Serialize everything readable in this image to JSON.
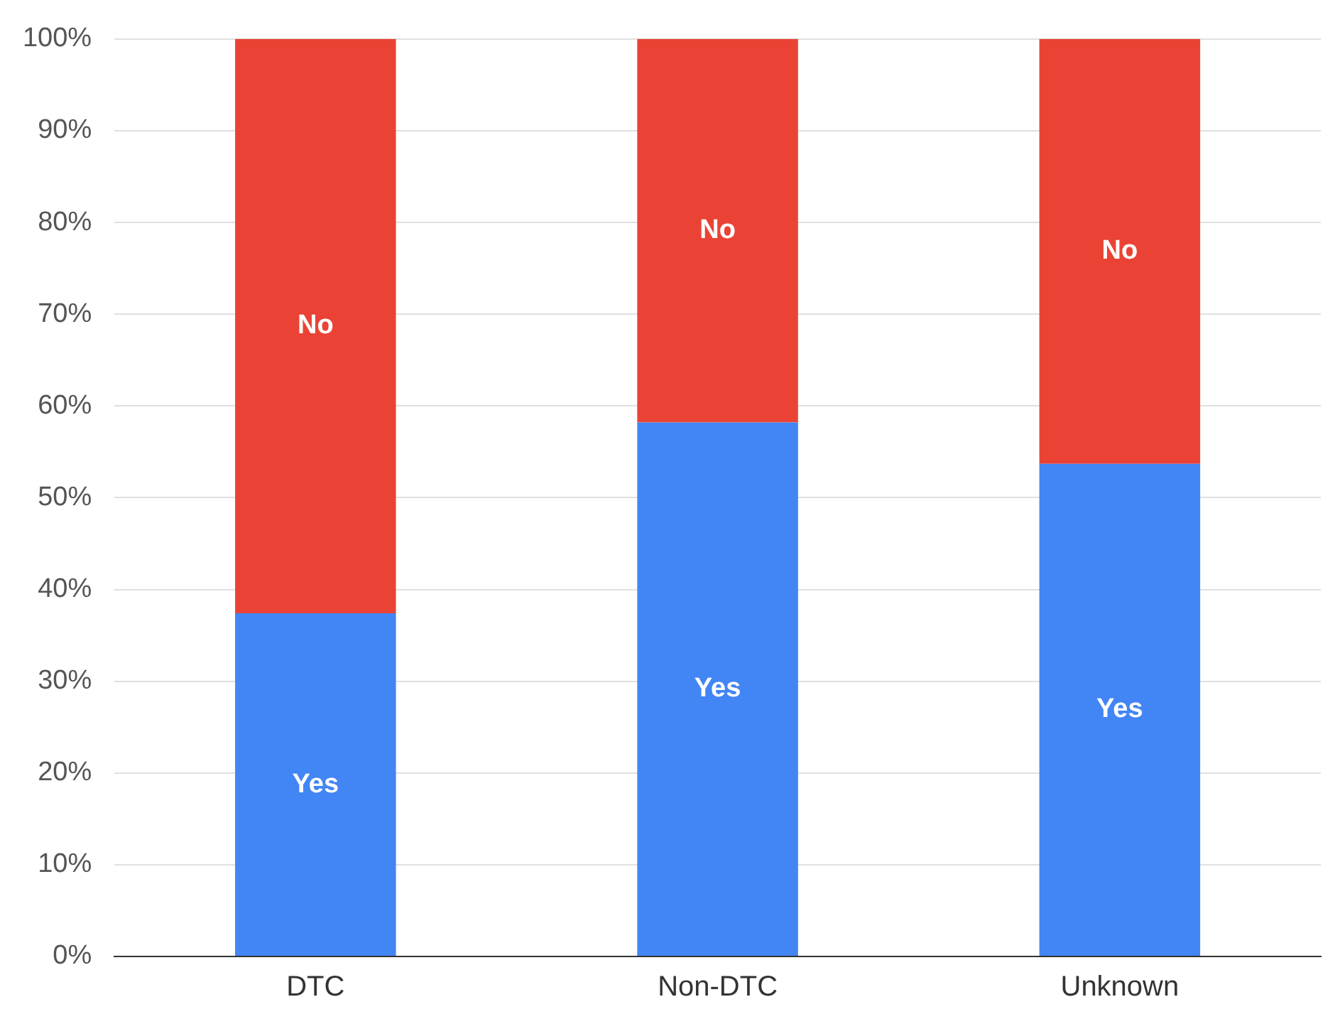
{
  "chart_data": {
    "type": "bar",
    "stacked": true,
    "categories": [
      "DTC",
      "Non-DTC",
      "Unknown"
    ],
    "series": [
      {
        "name": "Yes",
        "color": "#4285f4",
        "values": [
          37.4,
          58.2,
          53.7
        ]
      },
      {
        "name": "No",
        "color": "#ea4335",
        "values": [
          62.6,
          41.8,
          46.3
        ]
      }
    ],
    "ylim": [
      0,
      100
    ],
    "yticks": [
      {
        "value": 0,
        "label": "0%"
      },
      {
        "value": 10,
        "label": "10%"
      },
      {
        "value": 20,
        "label": "20%"
      },
      {
        "value": 30,
        "label": "30%"
      },
      {
        "value": 40,
        "label": "40%"
      },
      {
        "value": 50,
        "label": "50%"
      },
      {
        "value": 60,
        "label": "60%"
      },
      {
        "value": 70,
        "label": "70%"
      },
      {
        "value": 80,
        "label": "80%"
      },
      {
        "value": 90,
        "label": "90%"
      },
      {
        "value": 100,
        "label": "100%"
      }
    ],
    "grid": "y",
    "legend": false
  }
}
